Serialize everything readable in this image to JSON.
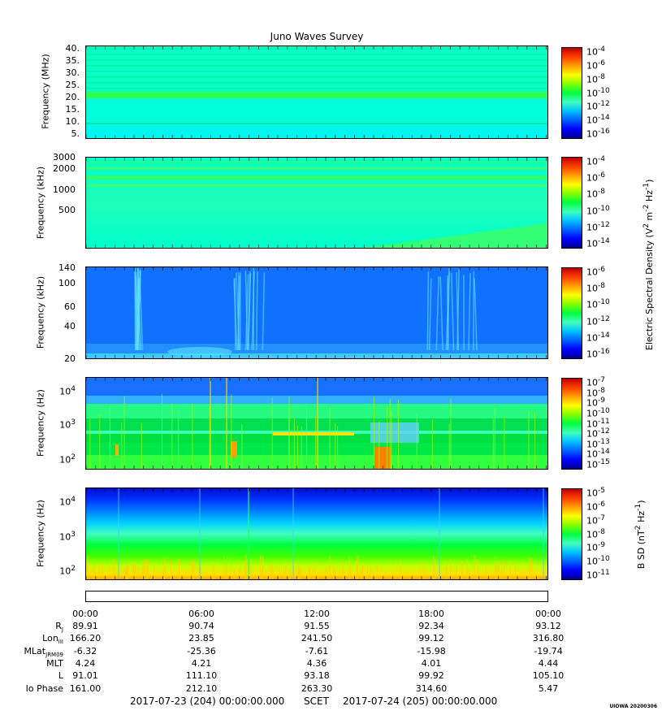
{
  "title": "Juno Waves Survey",
  "colors": {
    "jet": [
      "#00008f",
      "#0000ff",
      "#0060ff",
      "#00c0ff",
      "#40ffc0",
      "#00ff40",
      "#80ff00",
      "#ffff00",
      "#ffa000",
      "#ff4000",
      "#c00000"
    ]
  },
  "panels": [
    {
      "id": "p1",
      "ylabel": "Frequency (MHz)",
      "yticks": [
        "40.",
        "35.",
        "30.",
        "25.",
        "20.",
        "15.",
        "10.",
        "5."
      ],
      "cbar_ticks": [
        "-4",
        "-6",
        "-8",
        "-10",
        "-12",
        "-14",
        "-16"
      ],
      "base_color": "#00ffd8",
      "bands": [
        {
          "f": 0.56,
          "color": "#20ff60"
        },
        {
          "f": 0.86,
          "color": "#00f0a0"
        }
      ]
    },
    {
      "id": "p2",
      "ylabel": "Frequency (kHz)",
      "yticks": [
        "3000",
        "2000",
        "1000",
        "500"
      ],
      "cbar_ticks": [
        "-4",
        "-6",
        "-8",
        "-10",
        "-12",
        "-14"
      ],
      "base_color": "#20ffb0"
    },
    {
      "id": "p3",
      "ylabel": "Frequency (kHz)",
      "yticks": [
        "140",
        "100",
        "60",
        "40",
        "20"
      ],
      "cbar_ticks": [
        "-6",
        "-8",
        "-10",
        "-12",
        "-14",
        "-16"
      ],
      "base_color": "#1070ff"
    },
    {
      "id": "p4",
      "ylabel": "Frequency (Hz)",
      "yticks": [
        "10",
        "10",
        "10"
      ],
      "yexp": [
        "4",
        "3",
        "2"
      ],
      "cbar_ticks": [
        "-7",
        "-8",
        "-9",
        "-10",
        "-11",
        "-12",
        "-13",
        "-14",
        "-15"
      ],
      "base_color": "#00e040"
    },
    {
      "id": "p5",
      "ylabel": "Frequency (Hz)",
      "yticks": [
        "10",
        "10",
        "10"
      ],
      "yexp": [
        "4",
        "3",
        "2"
      ],
      "cbar_ticks": [
        "-5",
        "-6",
        "-7",
        "-8",
        "-9",
        "-10",
        "-11"
      ],
      "base_color": "#00ff60"
    }
  ],
  "right_labels": {
    "esd": "Electric Spectral Density (V",
    "esd_sup1": "2",
    "esd_mid": " m",
    "esd_sup2": "-2",
    "esd_mid2": " Hz",
    "esd_sup3": "-1",
    "esd_end": ")",
    "bsd": "B SD (nT",
    "bsd_sup1": "2",
    "bsd_mid": " Hz",
    "bsd_sup2": "-1",
    "bsd_end": ")"
  },
  "time_ticks": [
    "00:00",
    "06:00",
    "12:00",
    "18:00",
    "00:00"
  ],
  "ephemeris": [
    {
      "label": "R",
      "sub": "J",
      "values": [
        "89.91",
        "90.74",
        "91.55",
        "92.34",
        "93.12"
      ]
    },
    {
      "label": "Lon",
      "sub": "III",
      "values": [
        "166.20",
        "23.85",
        "241.50",
        "99.12",
        "316.80"
      ]
    },
    {
      "label": "MLat",
      "sub": "JRM09",
      "values": [
        "-6.32",
        "-25.36",
        "-7.61",
        "-15.98",
        "-19.74"
      ]
    },
    {
      "label": "MLT",
      "sub": "",
      "values": [
        "4.24",
        "4.21",
        "4.36",
        "4.01",
        "4.44"
      ]
    },
    {
      "label": "L",
      "sub": "",
      "values": [
        "91.01",
        "111.10",
        "93.18",
        "99.92",
        "105.10"
      ]
    },
    {
      "label": "Io Phase",
      "sub": "",
      "values": [
        "161.00",
        "212.10",
        "263.30",
        "314.60",
        "5.47"
      ]
    }
  ],
  "footer": {
    "start": "2017-07-23 (204) 00:00:00.000",
    "scet": "SCET",
    "end": "2017-07-24 (205) 00:00:00.000"
  },
  "stamp": "UIOWA 20200306",
  "chart_data": {
    "type": "heatmap",
    "title": "Juno Waves Survey",
    "x_range": [
      "2017-07-23 00:00",
      "2017-07-24 00:00"
    ],
    "panels": [
      {
        "ylabel": "Frequency (MHz)",
        "ylim": [
          3,
          41
        ],
        "colorbar_log10_range": [
          -17,
          -4
        ]
      },
      {
        "ylabel": "Frequency (kHz)",
        "ylim": [
          140,
          3000
        ],
        "colorbar_log10_range": [
          -15,
          -4
        ]
      },
      {
        "ylabel": "Frequency (kHz)",
        "ylim": [
          20,
          140
        ],
        "colorbar_log10_range": [
          -16,
          -6
        ]
      },
      {
        "ylabel": "Frequency (Hz)",
        "ylim": [
          50,
          20000
        ],
        "scale": "log",
        "colorbar_log10_range": [
          -15,
          -7
        ]
      },
      {
        "ylabel": "Frequency (Hz)",
        "ylim": [
          50,
          20000
        ],
        "scale": "log",
        "colorbar_log10_range": [
          -11,
          -5
        ]
      }
    ]
  }
}
